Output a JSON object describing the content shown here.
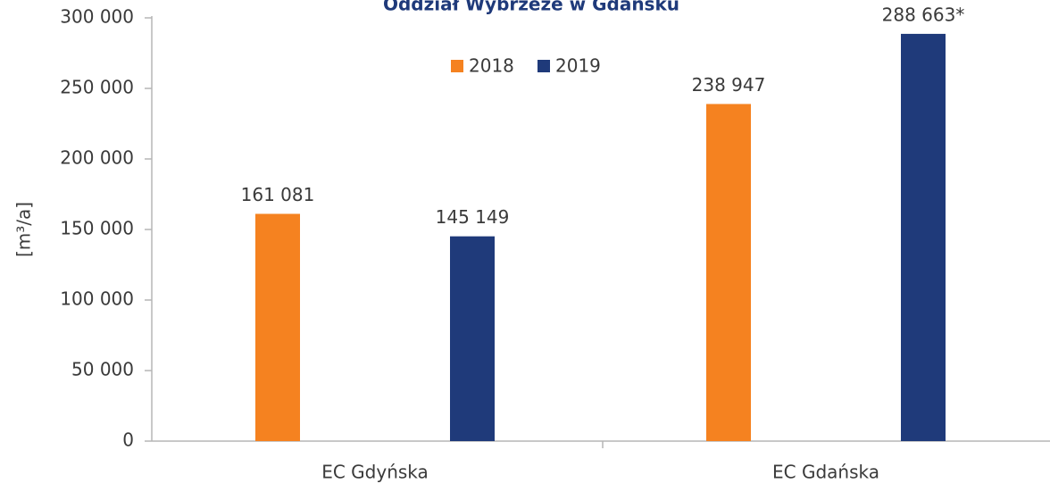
{
  "chart_data": {
    "type": "bar",
    "title": "Oddział Wybrzeże w Gdańsku",
    "y_label": "[m³/a]",
    "categories": [
      "EC Gdyńska",
      "EC Gdańska"
    ],
    "series": [
      {
        "name": "2018",
        "color": "#f58220",
        "values": [
          161081,
          238947
        ],
        "value_labels": [
          "161 081",
          "238 947"
        ]
      },
      {
        "name": "2019",
        "color": "#1f3a7a",
        "values": [
          145149,
          288663
        ],
        "value_labels": [
          "145 149",
          "288 663*"
        ]
      }
    ],
    "ylim": [
      0,
      300000
    ],
    "yticks": [
      0,
      {
        "value": 50000,
        "label": "50 000"
      },
      {
        "value": 100000,
        "label": "100 000"
      },
      {
        "value": 150000,
        "label": "150 000"
      },
      {
        "value": 200000,
        "label": "200 000"
      },
      {
        "value": 250000,
        "label": "250 000"
      },
      {
        "value": 300000,
        "label": "300 000"
      }
    ],
    "grid": false
  }
}
